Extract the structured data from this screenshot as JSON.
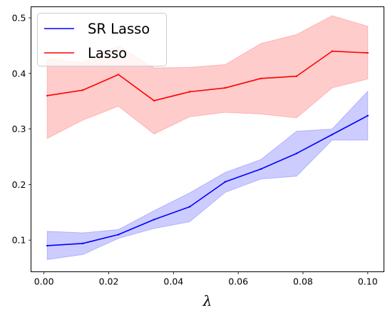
{
  "chart_data": {
    "type": "line",
    "title": "",
    "xlabel": "λ",
    "ylabel": "",
    "xlim": [
      -0.004,
      0.105
    ],
    "ylim": [
      0.043,
      0.52
    ],
    "xticks": [
      0.0,
      0.02,
      0.04,
      0.06,
      0.08,
      0.1
    ],
    "xtick_labels": [
      "0.00",
      "0.02",
      "0.04",
      "0.06",
      "0.08",
      "0.10"
    ],
    "yticks": [
      0.1,
      0.2,
      0.3,
      0.4,
      0.5
    ],
    "ytick_labels": [
      "0.1",
      "0.2",
      "0.3",
      "0.4",
      "0.5"
    ],
    "grid": false,
    "legend_position": "top-left",
    "x": [
      0.001,
      0.012,
      0.023,
      0.034,
      0.045,
      0.056,
      0.067,
      0.078,
      0.089,
      0.1
    ],
    "series": [
      {
        "name": "SR Lasso",
        "color": "#0000ff",
        "band_color": "#0000ff",
        "values": [
          0.09,
          0.094,
          0.11,
          0.137,
          0.16,
          0.205,
          0.228,
          0.256,
          0.29,
          0.324
        ],
        "upper": [
          0.116,
          0.113,
          0.119,
          0.153,
          0.185,
          0.222,
          0.245,
          0.296,
          0.3,
          0.368
        ],
        "lower": [
          0.065,
          0.074,
          0.103,
          0.121,
          0.133,
          0.186,
          0.21,
          0.215,
          0.28,
          0.28
        ]
      },
      {
        "name": "Lasso",
        "color": "#ff0000",
        "band_color": "#ff0000",
        "values": [
          0.36,
          0.37,
          0.398,
          0.351,
          0.367,
          0.374,
          0.391,
          0.395,
          0.44,
          0.437
        ],
        "upper": [
          0.426,
          0.42,
          0.45,
          0.41,
          0.411,
          0.416,
          0.454,
          0.47,
          0.504,
          0.485
        ],
        "lower": [
          0.283,
          0.316,
          0.341,
          0.291,
          0.322,
          0.33,
          0.327,
          0.32,
          0.374,
          0.39
        ]
      }
    ]
  }
}
